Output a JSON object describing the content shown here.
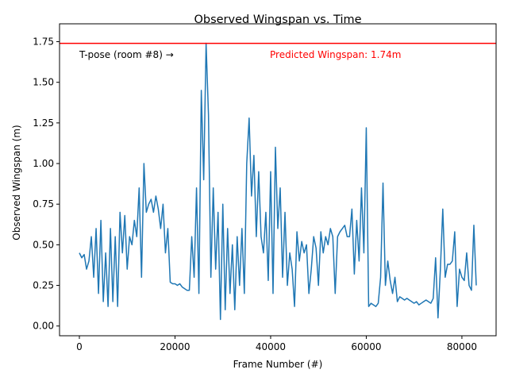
{
  "chart_data": {
    "type": "line",
    "title": "Observed Wingspan vs. Time",
    "x_label": "Frame Number (#)",
    "y_label": "Observed Wingspan (m)",
    "annotations": [
      "T-pose (room #8) →",
      "Predicted Wingspan: 1.74m"
    ],
    "annotation_colors": [
      "#000000",
      "#ff0000"
    ],
    "hline": {
      "value": 1.74,
      "color": "#ff0000"
    },
    "xlim": [
      -4150,
      87150
    ],
    "ylim": [
      -0.06,
      1.86
    ],
    "xticks": [
      0,
      20000,
      40000,
      60000,
      80000
    ],
    "yticks": [
      {
        "value": 0,
        "label": "0.00"
      },
      {
        "value": 0.25,
        "label": "0.25"
      },
      {
        "value": 0.5,
        "label": "0.50"
      },
      {
        "value": 0.75,
        "label": "0.75"
      },
      {
        "value": 1,
        "label": "1.00"
      },
      {
        "value": 1.25,
        "label": "1.25"
      },
      {
        "value": 1.5,
        "label": "1.50"
      },
      {
        "value": 1.75,
        "label": "1.75"
      }
    ],
    "x": [
      0,
      500,
      1000,
      1500,
      2000,
      2500,
      3000,
      3500,
      4000,
      4500,
      5000,
      5500,
      6000,
      6500,
      7000,
      7500,
      8000,
      8500,
      9000,
      9500,
      10000,
      10500,
      11000,
      11500,
      12000,
      12500,
      13000,
      13500,
      14000,
      14500,
      15000,
      15500,
      16000,
      16500,
      17000,
      17500,
      18000,
      18500,
      19000,
      19500,
      20000,
      20500,
      21000,
      21500,
      22000,
      22500,
      23000,
      23500,
      24000,
      24500,
      25000,
      25500,
      26000,
      26500,
      27000,
      27500,
      28000,
      28500,
      29000,
      29500,
      30000,
      30500,
      31000,
      31500,
      32000,
      32500,
      33000,
      33500,
      34000,
      34500,
      35000,
      35500,
      36000,
      36500,
      37000,
      37500,
      38000,
      38500,
      39000,
      39500,
      40000,
      40500,
      41000,
      41500,
      42000,
      42500,
      43000,
      43500,
      44000,
      44500,
      45000,
      45500,
      46000,
      46500,
      47000,
      47500,
      48000,
      48500,
      49000,
      49500,
      50000,
      50500,
      51000,
      51500,
      52000,
      52500,
      53000,
      53500,
      54000,
      54500,
      55000,
      55500,
      56000,
      56500,
      57000,
      57500,
      58000,
      58500,
      59000,
      59500,
      60000,
      60500,
      61000,
      61500,
      62000,
      62500,
      63000,
      63500,
      64000,
      64500,
      65000,
      65500,
      66000,
      66500,
      67000,
      67500,
      68000,
      68500,
      69000,
      69500,
      70000,
      70500,
      71000,
      71500,
      72000,
      72500,
      73000,
      73500,
      74000,
      74500,
      75000,
      75500,
      76000,
      76500,
      77000,
      77500,
      78000,
      78500,
      79000,
      79500,
      80000,
      80500,
      81000,
      81500,
      82000,
      82500,
      83000
    ],
    "series": [
      {
        "name": "Observed Wingspan",
        "color": "#1f77b4",
        "values": [
          0.45,
          0.42,
          0.44,
          0.35,
          0.4,
          0.55,
          0.3,
          0.6,
          0.2,
          0.65,
          0.15,
          0.45,
          0.12,
          0.6,
          0.15,
          0.55,
          0.12,
          0.7,
          0.45,
          0.68,
          0.35,
          0.55,
          0.5,
          0.65,
          0.55,
          0.85,
          0.3,
          1.0,
          0.7,
          0.75,
          0.78,
          0.7,
          0.8,
          0.72,
          0.6,
          0.75,
          0.45,
          0.6,
          0.27,
          0.26,
          0.26,
          0.25,
          0.26,
          0.24,
          0.23,
          0.22,
          0.22,
          0.55,
          0.3,
          0.85,
          0.2,
          1.45,
          0.9,
          1.74,
          1.3,
          0.3,
          0.85,
          0.35,
          0.7,
          0.04,
          0.75,
          0.1,
          0.6,
          0.2,
          0.5,
          0.1,
          0.55,
          0.25,
          0.6,
          0.2,
          1.0,
          1.28,
          0.8,
          1.05,
          0.55,
          0.95,
          0.55,
          0.45,
          0.7,
          0.28,
          0.95,
          0.2,
          1.1,
          0.6,
          0.85,
          0.3,
          0.7,
          0.25,
          0.45,
          0.35,
          0.12,
          0.58,
          0.4,
          0.52,
          0.45,
          0.5,
          0.2,
          0.35,
          0.55,
          0.48,
          0.25,
          0.58,
          0.45,
          0.55,
          0.5,
          0.6,
          0.55,
          0.2,
          0.55,
          0.58,
          0.6,
          0.62,
          0.55,
          0.55,
          0.72,
          0.32,
          0.65,
          0.4,
          0.85,
          0.45,
          1.22,
          0.12,
          0.14,
          0.13,
          0.12,
          0.14,
          0.3,
          0.88,
          0.25,
          0.4,
          0.28,
          0.2,
          0.3,
          0.15,
          0.18,
          0.17,
          0.16,
          0.17,
          0.16,
          0.15,
          0.14,
          0.15,
          0.13,
          0.14,
          0.15,
          0.16,
          0.15,
          0.14,
          0.17,
          0.42,
          0.05,
          0.35,
          0.72,
          0.3,
          0.38,
          0.38,
          0.4,
          0.58,
          0.12,
          0.35,
          0.3,
          0.28,
          0.45,
          0.25,
          0.22,
          0.62,
          0.25
        ]
      }
    ]
  }
}
